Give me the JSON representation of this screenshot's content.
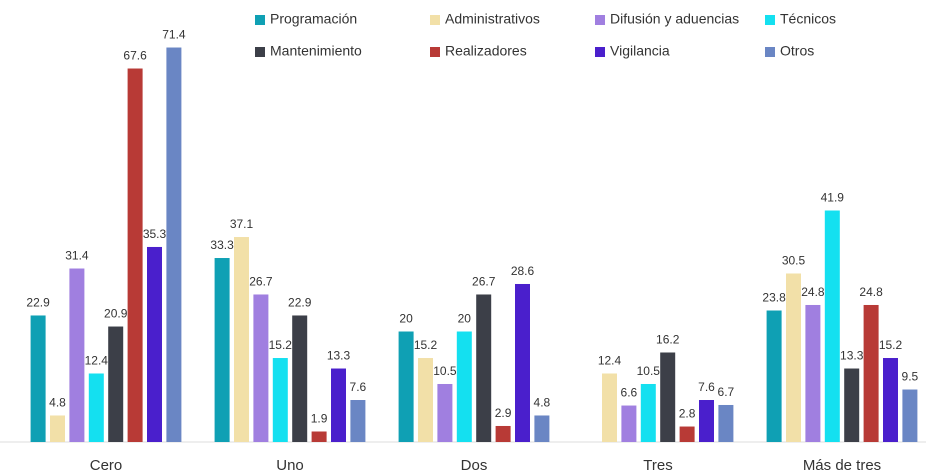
{
  "chart_data": {
    "type": "bar",
    "categories": [
      "Cero",
      "Uno",
      "Dos",
      "Tres",
      "Más de tres"
    ],
    "series": [
      {
        "name": "Programación",
        "color": "#0fa0b4",
        "values": [
          22.9,
          33.3,
          20,
          null,
          23.8
        ]
      },
      {
        "name": "Administrativos",
        "color": "#f2e0a8",
        "values": [
          4.8,
          37.1,
          15.2,
          12.4,
          30.5
        ]
      },
      {
        "name": "Difusión y aduencias",
        "color": "#a07fe0",
        "values": [
          31.4,
          26.7,
          10.5,
          6.6,
          24.8
        ]
      },
      {
        "name": "Técnicos",
        "color": "#14e0f0",
        "values": [
          12.4,
          15.2,
          20,
          10.5,
          41.9
        ]
      },
      {
        "name": "Mantenimiento",
        "color": "#3c3f48",
        "values": [
          20.9,
          22.9,
          26.7,
          16.2,
          13.3
        ]
      },
      {
        "name": "Realizadores",
        "color": "#b83a36",
        "values": [
          67.6,
          1.9,
          2.9,
          2.8,
          24.8
        ]
      },
      {
        "name": "Vigilancia",
        "color": "#4a1fcc",
        "values": [
          35.3,
          13.3,
          28.6,
          7.6,
          15.2
        ]
      },
      {
        "name": "Otros",
        "color": "#6a86c4",
        "values": [
          71.4,
          7.6,
          4.8,
          6.7,
          9.5
        ]
      }
    ],
    "ylim": [
      0,
      80
    ],
    "legend": "top"
  }
}
